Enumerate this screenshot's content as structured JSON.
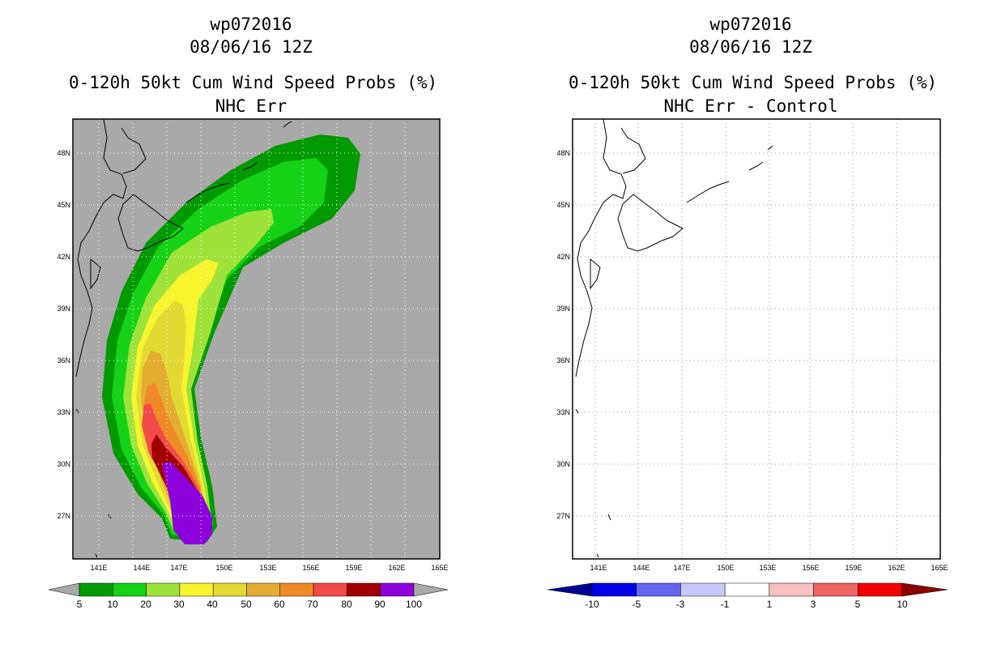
{
  "left_panel": {
    "storm_id": "wp072016",
    "datetime": "08/06/16 12Z",
    "product": "0-120h 50kt Cum Wind Speed Probs (%)",
    "subtitle": "NHC Err",
    "lon_ticks": [
      "141E",
      "144E",
      "147E",
      "150E",
      "153E",
      "156E",
      "159E",
      "162E",
      "165E"
    ],
    "lat_ticks": [
      "48N",
      "45N",
      "42N",
      "39N",
      "36N",
      "33N",
      "30N",
      "27N"
    ],
    "colorbar": {
      "labels": [
        "5",
        "10",
        "20",
        "30",
        "40",
        "50",
        "60",
        "70",
        "80",
        "90",
        "100"
      ],
      "colors": [
        "#009a00",
        "#16d216",
        "#9fe33a",
        "#f6f52e",
        "#e2da32",
        "#e4ad32",
        "#ef8a26",
        "#f44a4a",
        "#a00000",
        "#8c00dc"
      ]
    }
  },
  "right_panel": {
    "storm_id": "wp072016",
    "datetime": "08/06/16 12Z",
    "product": "0-120h 50kt Cum Wind Speed Probs (%)",
    "subtitle": "NHC Err - Control",
    "lon_ticks": [
      "141E",
      "144E",
      "147E",
      "150E",
      "153E",
      "156E",
      "159E",
      "162E",
      "165E"
    ],
    "lat_ticks": [
      "48N",
      "45N",
      "42N",
      "39N",
      "36N",
      "33N",
      "30N",
      "27N"
    ],
    "colorbar": {
      "labels": [
        "-10",
        "-5",
        "-3",
        "-1",
        "1",
        "3",
        "5",
        "10"
      ],
      "colors": [
        "#0000e6",
        "#6464f0",
        "#c8c8f8",
        "#ffffff",
        "#f8c0c0",
        "#f06464",
        "#f00000"
      ]
    }
  }
}
